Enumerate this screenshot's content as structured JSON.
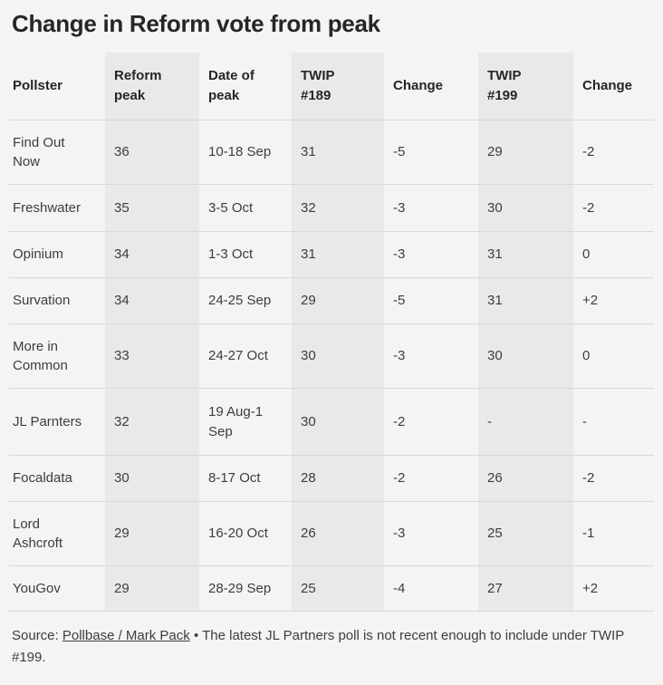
{
  "title": "Change in Reform vote from peak",
  "chart_data": {
    "type": "table",
    "title": "Change in Reform vote from peak",
    "columns": [
      "Pollster",
      "Reform peak",
      "Date of peak",
      "TWIP #189",
      "Change",
      "TWIP #199",
      "Change"
    ],
    "shaded_columns": [
      1,
      3,
      5
    ],
    "rows": [
      [
        "Find Out Now",
        "36",
        "10-18 Sep",
        "31",
        "-5",
        "29",
        "-2"
      ],
      [
        "Freshwater",
        "35",
        "3-5 Oct",
        "32",
        "-3",
        "30",
        "-2"
      ],
      [
        "Opinium",
        "34",
        "1-3 Oct",
        "31",
        "-3",
        "31",
        "0"
      ],
      [
        "Survation",
        "34",
        "24-25 Sep",
        "29",
        "-5",
        "31",
        "+2"
      ],
      [
        "More in Common",
        "33",
        "24-27 Oct",
        "30",
        "-3",
        "30",
        "0"
      ],
      [
        "JL Parnters",
        "32",
        "19 Aug-1 Sep",
        "30",
        "-2",
        "-",
        "-"
      ],
      [
        "Focaldata",
        "30",
        "8-17 Oct",
        "28",
        "-2",
        "26",
        "-2"
      ],
      [
        "Lord Ashcroft",
        "29",
        "16-20 Oct",
        "26",
        "-3",
        "25",
        "-1"
      ],
      [
        "YouGov",
        "29",
        "28-29 Sep",
        "25",
        "-4",
        "27",
        "+2"
      ]
    ]
  },
  "footer": {
    "source_prefix": "Source:",
    "source_link": "Pollbase / Mark Pack",
    "bullet": "•",
    "note": "The latest JL Partners poll is not recent enough to include under TWIP #199."
  },
  "colors": {
    "background": "#f4f4f2",
    "column_shade": "#e9e9e7",
    "divider": "#d8d8d6",
    "text": "#3d3d3d",
    "heading": "#262626"
  }
}
